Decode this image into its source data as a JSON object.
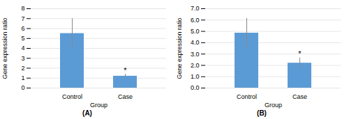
{
  "chart_data": [
    {
      "type": "bar",
      "categories": [
        "Control",
        "Case"
      ],
      "values": [
        5.5,
        1.2
      ],
      "errors": [
        1.5,
        0.2
      ],
      "ylim": [
        0,
        8
      ],
      "yticks": [
        0,
        1,
        2,
        3,
        4,
        5,
        6,
        7,
        8
      ],
      "ylabel": "Gene expression ratio",
      "xlabel": "Group",
      "subtitle": "(A)",
      "color": "#5B9BD5",
      "grid": true,
      "annotations": [
        {
          "category": "Case",
          "text": "*"
        }
      ]
    },
    {
      "type": "bar",
      "categories": [
        "Control",
        "Case"
      ],
      "values": [
        4.85,
        2.2
      ],
      "errors": [
        1.3,
        0.45
      ],
      "ylim": [
        0,
        7
      ],
      "yticks": [
        0,
        1,
        2,
        3,
        4,
        5,
        6,
        7
      ],
      "ylabel": "Gene expression ratio",
      "xlabel": "Group",
      "subtitle": "(B)",
      "color": "#5B9BD5",
      "grid": true,
      "annotations": [
        {
          "category": "Case",
          "text": "*"
        }
      ]
    }
  ]
}
